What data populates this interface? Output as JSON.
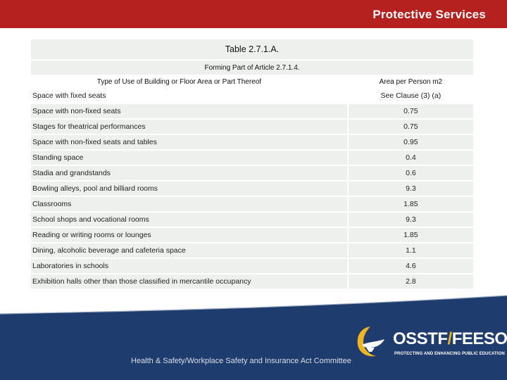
{
  "header": {
    "title": "Protective Services"
  },
  "table": {
    "title": "Table 2.7.1.A.",
    "subtitle": "Forming Part of Article 2.7.1.4.",
    "col_headers": [
      "Type of Use of Building or Floor Area or Part Thereof",
      "Area per Person m2"
    ],
    "rows": [
      [
        "Space with fixed seats",
        "See Clause (3) (a)"
      ],
      [
        "Space with non-fixed seats",
        "0.75"
      ],
      [
        "Stages for theatrical performances",
        "0.75"
      ],
      [
        "Space with non-fixed seats and tables",
        "0.95"
      ],
      [
        "Standing space",
        "0.4"
      ],
      [
        "Stadia and grandstands",
        "0.6"
      ],
      [
        "Bowling alleys, pool and billiard rooms",
        "9.3"
      ],
      [
        "Classrooms",
        "1.85"
      ],
      [
        "School shops and vocational rooms",
        "9.3"
      ],
      [
        "Reading or writing rooms or lounges",
        "1.85"
      ],
      [
        "Dining, alcoholic beverage and cafeteria space",
        "1.1"
      ],
      [
        "Laboratories in schools",
        "4.6"
      ],
      [
        "Exhibition halls other than those classified in mercantile occupancy",
        "2.8"
      ]
    ]
  },
  "footer": {
    "text": "Health & Safety/Workplace Safety and Insurance Act Committee",
    "logo_left": "OSSTF",
    "logo_slash": "/",
    "logo_right": "FEESO",
    "tagline": "PROTECTING AND ENHANCING PUBLIC EDUCATION"
  },
  "colors": {
    "header": "#b5211f",
    "footer": "#1f3c6e",
    "accent": "#f0b422",
    "row": "#eef0ee"
  }
}
